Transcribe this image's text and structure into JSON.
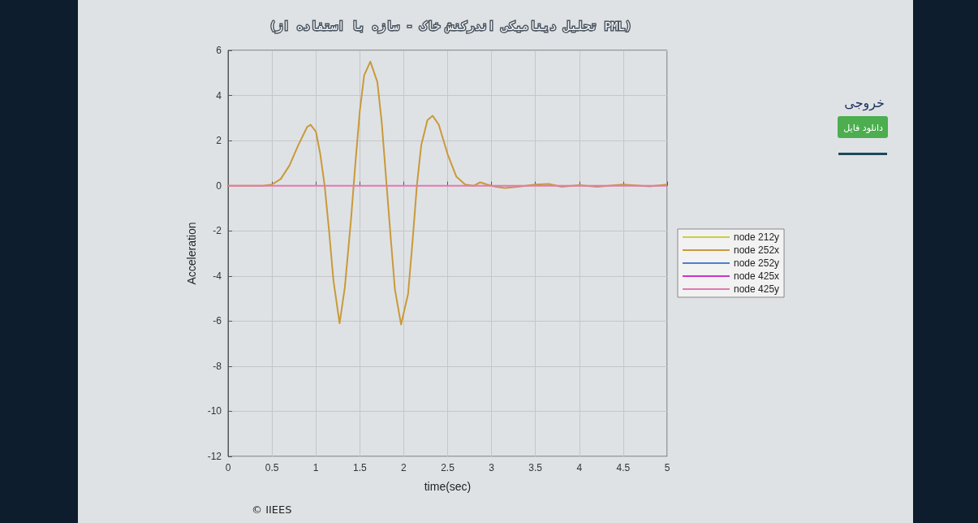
{
  "chart_data": {
    "type": "line",
    "subtitle": "(تحلیل دینامیکی اندرکنش خاک - سازه با استفاده از PML)",
    "xlabel": "time(sec)",
    "ylabel": "Acceleration",
    "annotations": [
      "© IIEES",
      "خروجی",
      "دانلود فایل"
    ],
    "xlim": [
      0,
      5
    ],
    "xticks": [
      0,
      0.5,
      1,
      1.5,
      2,
      2.5,
      3,
      3.5,
      4,
      4.5,
      5
    ],
    "ylim": [
      -12,
      6
    ],
    "yticks": [
      -12,
      -10,
      -8,
      -6,
      -4,
      -2,
      0,
      2,
      4,
      6
    ],
    "grid": true,
    "legend": "right",
    "marker": "none",
    "line_style": "solid",
    "series": [
      {
        "name": "node 212y",
        "color": "#c8d040",
        "values": [
          null
        ]
      },
      {
        "name": "node 252x",
        "color": "#c89a3a",
        "x": [
          0,
          0.4,
          0.5,
          0.6,
          0.7,
          0.8,
          0.9,
          0.94,
          1.0,
          1.05,
          1.1,
          1.15,
          1.2,
          1.27,
          1.33,
          1.4,
          1.45,
          1.5,
          1.55,
          1.62,
          1.7,
          1.75,
          1.8,
          1.85,
          1.9,
          1.97,
          2.05,
          2.1,
          2.15,
          2.2,
          2.27,
          2.33,
          2.4,
          2.5,
          2.6,
          2.7,
          2.8,
          2.87,
          2.95,
          3.05,
          3.15,
          3.3,
          3.5,
          3.65,
          3.8,
          4.0,
          4.2,
          4.5,
          4.8,
          5
        ],
        "values": [
          0,
          0,
          0.05,
          0.3,
          0.9,
          1.8,
          2.6,
          2.7,
          2.4,
          1.4,
          0,
          -2.0,
          -4.2,
          -6.1,
          -4.5,
          -1.5,
          1.0,
          3.3,
          4.9,
          5.5,
          4.6,
          2.8,
          0.3,
          -2.2,
          -4.6,
          -6.15,
          -4.8,
          -2.5,
          0,
          1.8,
          2.9,
          3.1,
          2.7,
          1.4,
          0.4,
          0.05,
          0,
          0.15,
          0.05,
          -0.05,
          -0.1,
          -0.05,
          0.05,
          0.08,
          -0.05,
          0.02,
          -0.05,
          0.05,
          -0.03,
          0.05
        ]
      },
      {
        "name": "node 252y",
        "color": "#4a7fd0",
        "values": [
          null
        ]
      },
      {
        "name": "node 425x",
        "color": "#cc33cc",
        "values": [
          null
        ]
      },
      {
        "name": "node 425y",
        "color": "#e07ab0",
        "x": [
          0,
          1,
          2,
          3,
          4,
          5
        ],
        "values": [
          0,
          0,
          0,
          0,
          0,
          0
        ]
      }
    ]
  }
}
